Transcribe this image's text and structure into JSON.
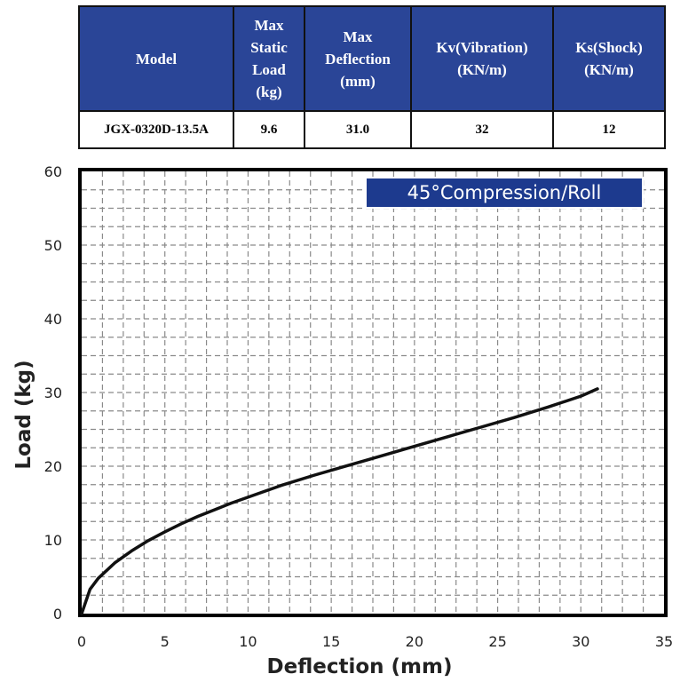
{
  "spec_table": {
    "headers": [
      [
        "Model"
      ],
      [
        "Max",
        "Static",
        "Load",
        "(kg)"
      ],
      [
        "Max",
        "Deflection",
        "(mm)"
      ],
      [
        "Kv(Vibration)",
        "(KN/m)"
      ],
      [
        "Ks(Shock)",
        "(KN/m)"
      ]
    ],
    "row": [
      "JGX-0320D-13.5A",
      "9.6",
      "31.0",
      "32",
      "12"
    ],
    "header_color": "#2a4597"
  },
  "chart_data": {
    "type": "line",
    "title": "45°Compression/Roll",
    "xlabel": "Deflection (mm)",
    "ylabel": "Load (kg)",
    "xlim": [
      0,
      35
    ],
    "ylim": [
      0,
      60
    ],
    "xticks": [
      "0",
      "5",
      "10",
      "15",
      "20",
      "25",
      "30",
      "35"
    ],
    "yticks": [
      "0",
      "10",
      "20",
      "30",
      "40",
      "50",
      "60"
    ],
    "grid": true,
    "title_background": "#1d3a8e",
    "series": [
      {
        "x": [
          0,
          0.5,
          1,
          2,
          3,
          4,
          5,
          6,
          7,
          8,
          9,
          10,
          12,
          14,
          16,
          18,
          20,
          22,
          24,
          26,
          28,
          30,
          31
        ],
        "y": [
          0,
          3.3,
          4.8,
          6.9,
          8.5,
          9.9,
          11.1,
          12.2,
          13.2,
          14.1,
          15.0,
          15.8,
          17.4,
          18.8,
          20.1,
          21.4,
          22.7,
          24.0,
          25.3,
          26.6,
          28.0,
          29.5,
          30.5
        ],
        "color": "#111111"
      }
    ]
  }
}
